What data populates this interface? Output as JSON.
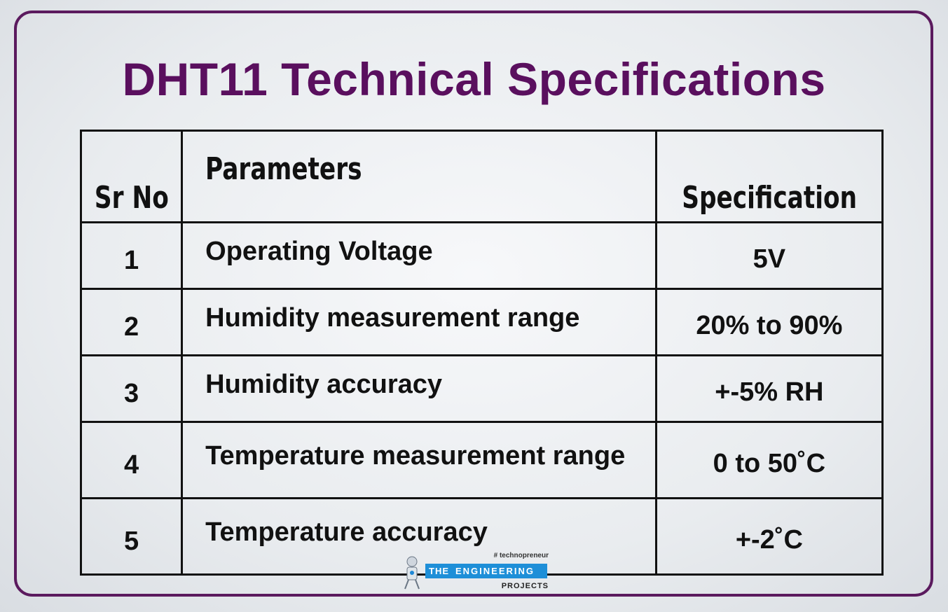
{
  "title": "DHT11 Technical Specifications",
  "table": {
    "header": [
      "Sr No",
      "Parameters",
      "Specification"
    ],
    "rows": [
      [
        "1",
        "Operating Voltage",
        "5V"
      ],
      [
        "2",
        "Humidity measurement range",
        "20% to 90%"
      ],
      [
        "3",
        "Humidity accuracy",
        "+-5% RH"
      ],
      [
        "4",
        "Temperature measurement range",
        "0 to 50˚C"
      ],
      [
        "5",
        "Temperature accuracy",
        "+-2˚C"
      ]
    ]
  },
  "logo": {
    "tagline": "# technopreneur",
    "first": "THE",
    "second": "ENGINEERING",
    "third": "PROJECTS"
  }
}
